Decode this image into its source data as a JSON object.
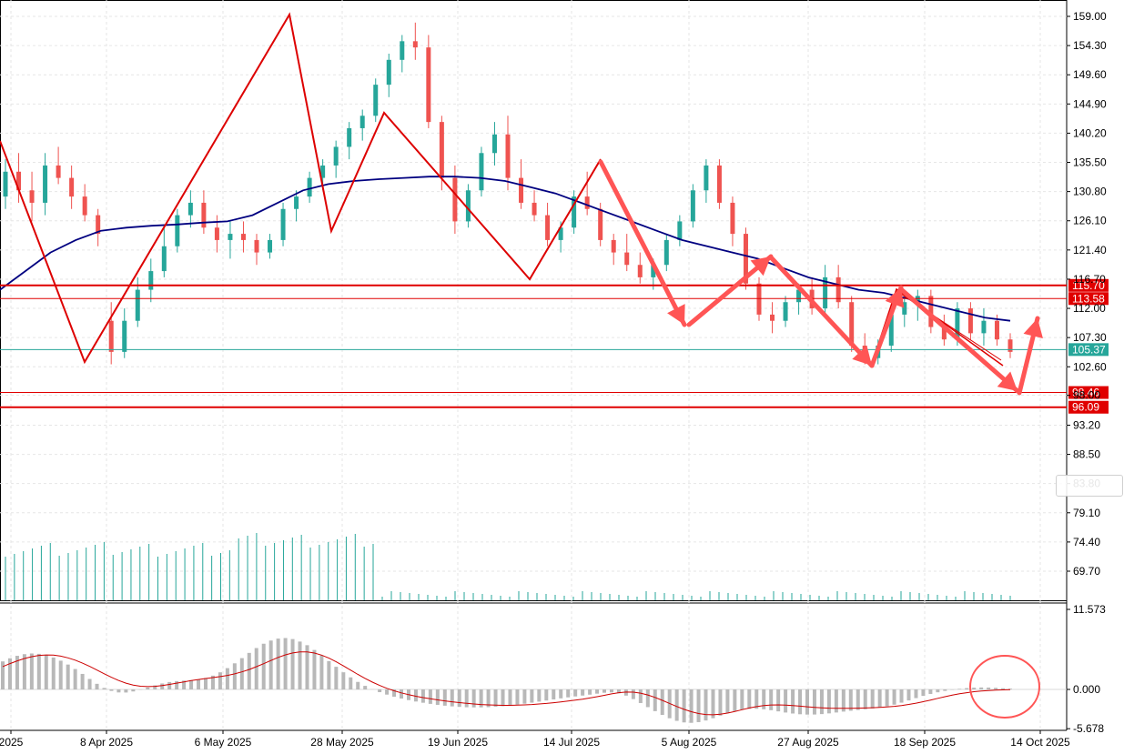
{
  "chart_data": [
    {
      "type": "candlestick",
      "panel": "price",
      "price_axis_ticks": [
        "159.00",
        "154.30",
        "149.60",
        "144.90",
        "140.20",
        "135.50",
        "130.80",
        "126.10",
        "121.40",
        "116.70",
        "112.00",
        "107.30",
        "102.60",
        "98.00",
        "93.20",
        "88.50",
        "83.80",
        "79.10",
        "74.40",
        "69.70"
      ],
      "ylim": [
        67.5,
        161.5
      ],
      "time_axis_labels": [
        "2025",
        "8 Apr 2025",
        "6 May 2025",
        "28 May 2025",
        "19 Jun 2025",
        "14 Jul 2025",
        "5 Aug 2025",
        "27 Aug 2025",
        "18 Sep 2025",
        "14 Oct 2025"
      ],
      "ohlc_approx": [
        [
          130,
          136,
          128,
          134
        ],
        [
          134,
          137,
          129,
          131
        ],
        [
          131,
          134,
          126,
          129
        ],
        [
          129,
          137,
          127,
          135
        ],
        [
          135,
          138,
          132,
          133
        ],
        [
          133,
          135,
          128,
          130
        ],
        [
          130,
          132,
          126,
          127
        ],
        [
          127,
          128,
          122,
          124
        ],
        [
          110,
          113,
          103,
          105
        ],
        [
          105,
          112,
          104,
          110
        ],
        [
          110,
          117,
          109,
          115
        ],
        [
          115,
          120,
          113,
          118
        ],
        [
          118,
          125,
          117,
          122
        ],
        [
          122,
          128,
          121,
          127
        ],
        [
          127,
          131,
          125,
          129
        ],
        [
          129,
          131,
          124,
          125
        ],
        [
          125,
          127,
          121,
          123
        ],
        [
          123,
          126,
          120,
          124
        ],
        [
          124,
          126,
          121,
          123
        ],
        [
          123,
          124,
          119,
          121
        ],
        [
          121,
          124,
          120,
          123
        ],
        [
          123,
          129,
          122,
          128
        ],
        [
          128,
          131,
          126,
          130
        ],
        [
          130,
          134,
          129,
          133
        ],
        [
          133,
          136,
          131,
          135
        ],
        [
          135,
          139,
          133,
          138
        ],
        [
          138,
          142,
          136,
          141
        ],
        [
          141,
          144,
          139,
          143
        ],
        [
          143,
          149,
          142,
          148
        ],
        [
          148,
          153,
          146,
          152
        ],
        [
          152,
          156,
          150,
          155
        ],
        [
          155,
          158,
          152,
          154
        ],
        [
          154,
          156,
          141,
          142
        ],
        [
          142,
          143,
          131,
          133
        ],
        [
          133,
          135,
          124,
          126
        ],
        [
          126,
          132,
          125,
          131
        ],
        [
          131,
          138,
          130,
          137
        ],
        [
          137,
          142,
          135,
          140
        ],
        [
          140,
          143,
          131,
          133
        ],
        [
          133,
          136,
          128,
          129
        ],
        [
          129,
          131,
          126,
          127
        ],
        [
          127,
          129,
          122,
          123
        ],
        [
          123,
          126,
          121,
          125
        ],
        [
          125,
          131,
          124,
          130
        ],
        [
          130,
          134,
          127,
          128
        ],
        [
          128,
          129,
          122,
          123
        ],
        [
          123,
          124,
          119,
          121
        ],
        [
          121,
          124,
          118,
          119
        ],
        [
          119,
          121,
          116,
          117
        ],
        [
          117,
          120,
          115,
          119
        ],
        [
          119,
          124,
          118,
          123
        ],
        [
          123,
          127,
          122,
          126
        ],
        [
          126,
          132,
          125,
          131
        ],
        [
          131,
          136,
          129,
          135
        ],
        [
          135,
          136,
          128,
          129
        ],
        [
          129,
          130,
          122,
          124
        ],
        [
          124,
          125,
          115,
          116
        ],
        [
          116,
          117,
          110,
          111
        ],
        [
          111,
          113,
          108,
          110
        ],
        [
          110,
          114,
          109,
          113
        ],
        [
          113,
          116,
          111,
          115
        ],
        [
          115,
          117,
          111,
          112
        ],
        [
          112,
          119,
          111,
          117
        ],
        [
          117,
          119,
          112,
          113
        ],
        [
          113,
          114,
          105,
          106
        ],
        [
          106,
          108,
          103,
          104
        ],
        [
          104,
          107,
          103,
          106
        ],
        [
          106,
          112,
          105,
          111
        ],
        [
          111,
          114,
          109,
          113
        ],
        [
          113,
          115,
          110,
          114
        ],
        [
          114,
          115,
          108,
          109
        ],
        [
          109,
          111,
          106,
          107
        ],
        [
          107,
          113,
          106,
          112
        ],
        [
          112,
          113,
          107,
          108
        ],
        [
          108,
          112,
          106,
          110
        ],
        [
          110,
          111,
          106,
          107
        ],
        [
          107,
          108,
          104,
          105
        ]
      ],
      "moving_average_approx": [
        115,
        118,
        121,
        123,
        124.5,
        125,
        125.3,
        125.5,
        125.8,
        126,
        127,
        129,
        131,
        132,
        132.5,
        132.8,
        133,
        133.2,
        133.2,
        133,
        132.5,
        131.5,
        130.5,
        129,
        127.5,
        126,
        124.5,
        123,
        122,
        121,
        120,
        118.5,
        117,
        116,
        115,
        114.5,
        113.5,
        112.5,
        111.5,
        110.5,
        110
      ],
      "volume_bars_approx_first_segment": 42,
      "volume_bars_approx_second_segment": 70
    },
    {
      "type": "histogram+line",
      "panel": "oscillator",
      "axis_ticks": [
        "11.573",
        "0.000",
        "-5.678"
      ],
      "ylim": [
        -6.5,
        12.5
      ]
    }
  ],
  "levels": {
    "current_price": "105.37",
    "resistance_1": "115.70",
    "resistance_2": "113.58",
    "support_1": "98.46",
    "support_2": "96.09"
  },
  "watermark": "",
  "colors": {
    "bull": "#26a69a",
    "bear": "#ef5350",
    "level_red": "#e00000",
    "current_line": "#26a69a",
    "ma_line": "#000080",
    "zigzag": "#dd0000",
    "arrow": "#ff5555",
    "histogram": "#b8b8b8",
    "signal": "#cc0000",
    "volume": "#26a69a",
    "grid": "#e6e6e6"
  }
}
